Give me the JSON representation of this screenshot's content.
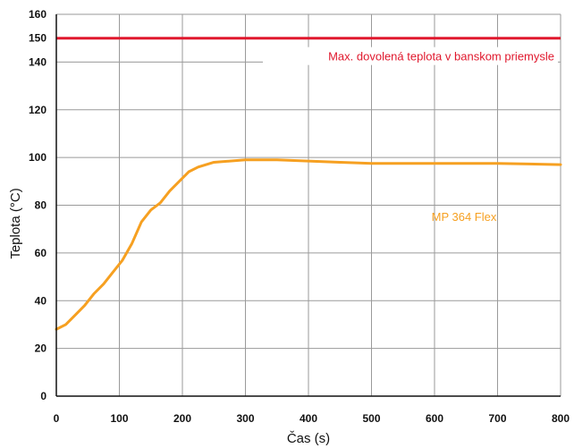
{
  "chart_data": {
    "type": "line",
    "xlabel": "Čas (s)",
    "ylabel": "Teplota (°C)",
    "xlim": [
      0,
      800
    ],
    "ylim": [
      0,
      160
    ],
    "xticks": [
      0,
      100,
      200,
      300,
      400,
      500,
      600,
      700,
      800
    ],
    "xtick_labels": [
      "0",
      "100",
      "200",
      "300",
      "400",
      "500",
      "600",
      "700",
      "800"
    ],
    "yticks": [
      0,
      20,
      40,
      60,
      80,
      100,
      120,
      140,
      160
    ],
    "ytick_labels": [
      "0",
      "20",
      "40",
      "60",
      "80",
      "100",
      "120",
      "140",
      "160"
    ],
    "grid": true,
    "reference_line": {
      "y": 150,
      "tick_label": "150",
      "label": "Max. dovolená teplota v banskom priemysle",
      "color": "#e0182d"
    },
    "series": [
      {
        "name": "MP 364 Flex",
        "color": "#f6a021",
        "x": [
          0,
          15,
          30,
          45,
          60,
          75,
          90,
          105,
          120,
          135,
          150,
          165,
          180,
          195,
          210,
          225,
          250,
          300,
          350,
          400,
          450,
          500,
          550,
          600,
          650,
          700,
          750,
          800
        ],
        "y": [
          28,
          30,
          34,
          38,
          43,
          47,
          52,
          57,
          64,
          73,
          78,
          81,
          86,
          90,
          94,
          96,
          98,
          99,
          99,
          98.5,
          98,
          97.5,
          97.5,
          97.5,
          97.5,
          97.5,
          97.3,
          97
        ]
      }
    ]
  }
}
